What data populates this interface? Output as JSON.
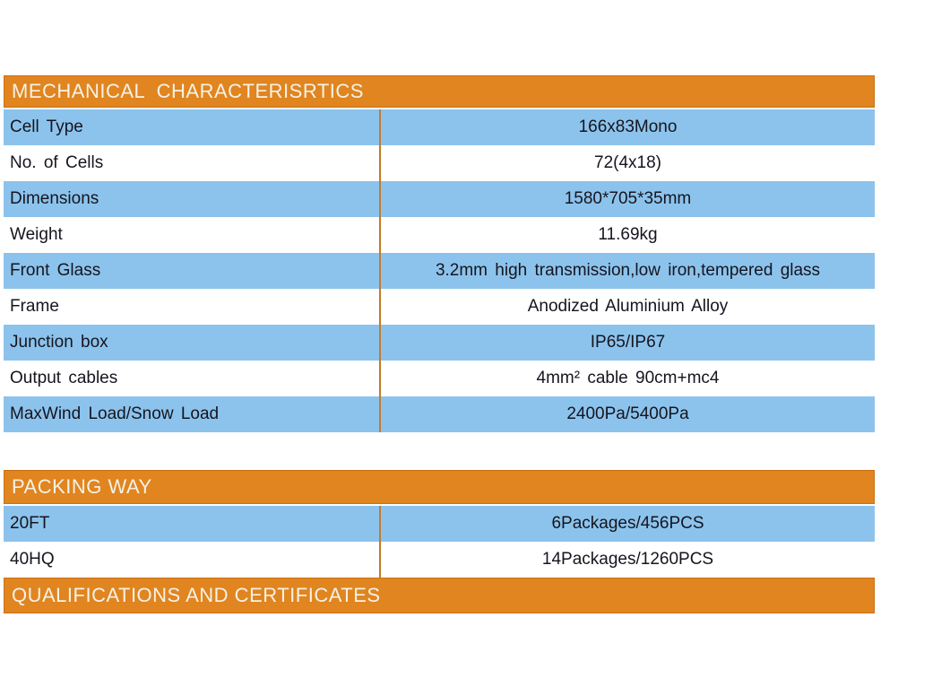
{
  "colors": {
    "header_bg": "#e0851f",
    "header_text": "#f6f1e6",
    "row_blue": "#8cc3ec",
    "row_white": "#ffffff",
    "row_text": "#15151f",
    "divider": "#c07c2c"
  },
  "mechanical": {
    "title": "MECHANICAL  CHARACTERISRTICS",
    "rows": [
      {
        "label": "Cell Type",
        "value": "166x83Mono"
      },
      {
        "label": "No. of Cells",
        "value": "72(4x18)"
      },
      {
        "label": "Dimensions",
        "value": "1580*705*35mm"
      },
      {
        "label": "Weight",
        "value": "11.69kg"
      },
      {
        "label": "Front Glass",
        "value": "3.2mm high transmission,low iron,tempered glass"
      },
      {
        "label": "Frame",
        "value": "Anodized Aluminium Alloy"
      },
      {
        "label": "Junction box",
        "value": "IP65/IP67"
      },
      {
        "label": "Output cables",
        "value": "4mm² cable 90cm+mc4"
      },
      {
        "label": "MaxWind Load/Snow Load",
        "value": "2400Pa/5400Pa"
      }
    ]
  },
  "packing": {
    "title": "PACKING WAY",
    "rows": [
      {
        "label": "20FT",
        "value": "6Packages/456PCS"
      },
      {
        "label": "40HQ",
        "value": "14Packages/1260PCS"
      }
    ]
  },
  "qualifications": {
    "title": "QUALIFICATIONS AND CERTIFICATES"
  }
}
